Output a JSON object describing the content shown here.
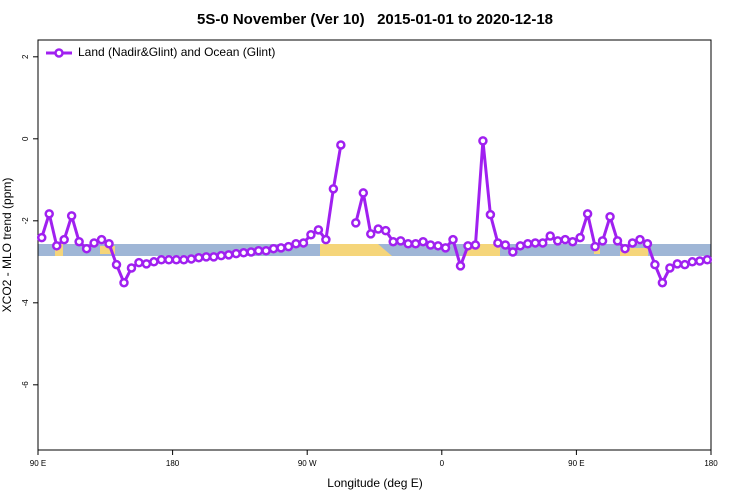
{
  "chart_data": {
    "type": "line",
    "title": "5S-0 November (Ver 10)   2015-01-01 to 2020-12-18",
    "x_label": "Longitude (deg E)",
    "y_label": "XCO2 - MLO trend (ppm)",
    "xlim": [
      90,
      540
    ],
    "ylim": [
      -7.59,
      2.41
    ],
    "xticks": [
      {
        "value": 90,
        "label": "90 E"
      },
      180,
      {
        "value": 270,
        "label": "90 W"
      },
      {
        "value": 360,
        "label": "0"
      },
      {
        "value": 450,
        "label": "90 E"
      },
      {
        "value": 540,
        "label": "180"
      }
    ],
    "yticks": [
      2,
      0,
      -2,
      -4,
      -6
    ],
    "legend": "top-left",
    "x": [
      92.5,
      97.5,
      102.5,
      107.5,
      112.5,
      117.5,
      122.5,
      127.5,
      132.5,
      137.5,
      142.5,
      147.5,
      152.5,
      157.5,
      162.5,
      167.5,
      172.5,
      177.5,
      182.5,
      187.5,
      192.5,
      197.5,
      202.5,
      207.5,
      212.5,
      217.5,
      222.5,
      227.5,
      232.5,
      237.5,
      242.5,
      247.5,
      252.5,
      257.5,
      262.5,
      267.5,
      272.5,
      277.5,
      282.5,
      287.5,
      292.5,
      297.5,
      302.5,
      307.5,
      312.5,
      317.5,
      322.5,
      327.5,
      332.5,
      337.5,
      342.5,
      347.5,
      352.5,
      357.5,
      362.5,
      367.5,
      372.5,
      377.5,
      382.5,
      387.5,
      392.5,
      397.5,
      402.5,
      407.5,
      412.5,
      417.5,
      422.5,
      427.5,
      432.5,
      437.5,
      442.5,
      447.5,
      452.5,
      457.5,
      462.5,
      467.5,
      472.5,
      477.5,
      482.5,
      487.5,
      492.5,
      497.5,
      502.5,
      507.5,
      512.5,
      517.5,
      522.5,
      527.5,
      532.5,
      537.5
    ],
    "series": [
      {
        "name": "Land (Nadir&Glint) and Ocean (Glint)",
        "color": "#a020f0",
        "values": [
          -2.41,
          -1.83,
          -2.61,
          -2.46,
          -1.88,
          -2.51,
          -2.68,
          -2.54,
          -2.46,
          -2.56,
          -3.07,
          -3.51,
          -3.15,
          -3.02,
          -3.05,
          -3.0,
          -2.95,
          -2.95,
          -2.95,
          -2.95,
          -2.93,
          -2.9,
          -2.88,
          -2.88,
          -2.85,
          -2.83,
          -2.8,
          -2.78,
          -2.76,
          -2.73,
          -2.73,
          -2.68,
          -2.66,
          -2.63,
          -2.56,
          -2.54,
          -2.34,
          -2.22,
          -2.46,
          -1.22,
          -0.15,
          null,
          -2.05,
          -1.32,
          -2.32,
          -2.2,
          -2.24,
          -2.51,
          -2.49,
          -2.56,
          -2.56,
          -2.51,
          -2.59,
          -2.61,
          -2.66,
          -2.46,
          -3.1,
          -2.61,
          -2.59,
          -0.05,
          -1.85,
          -2.54,
          -2.59,
          -2.76,
          -2.61,
          -2.56,
          -2.54,
          -2.54,
          -2.37,
          -2.49,
          -2.46,
          -2.51,
          -2.41,
          -1.83,
          -2.63,
          -2.49,
          -1.9,
          -2.49,
          -2.68,
          -2.54,
          -2.46,
          -2.56,
          -3.07,
          -3.51,
          -3.15,
          -3.05,
          -3.07,
          -3.0,
          -2.98,
          -2.95
        ]
      }
    ]
  }
}
